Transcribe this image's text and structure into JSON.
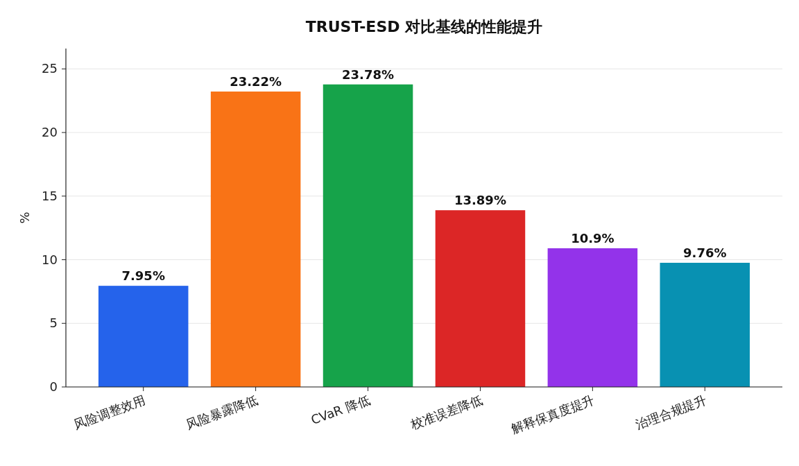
{
  "chart_data": {
    "type": "bar",
    "title": "TRUST-ESD 对比基线的性能提升",
    "ylabel": "%",
    "categories": [
      "风险调整效用",
      "风险暴露降低",
      "CVaR 降低",
      "校准误差降低",
      "解释保真度提升",
      "治理合规提升"
    ],
    "values": [
      7.95,
      23.22,
      23.78,
      13.89,
      10.9,
      9.76
    ],
    "colors": [
      "#2563eb",
      "#f97316",
      "#16a34a",
      "#dc2626",
      "#9333ea",
      "#0891b2"
    ],
    "value_labels": [
      "7.95%",
      "23.22%",
      "23.78%",
      "13.89%",
      "10.9%",
      "9.76%"
    ],
    "ylim": [
      0,
      26.6
    ],
    "yticks": [
      0,
      5,
      10,
      15,
      20,
      25
    ],
    "grid": "y"
  }
}
